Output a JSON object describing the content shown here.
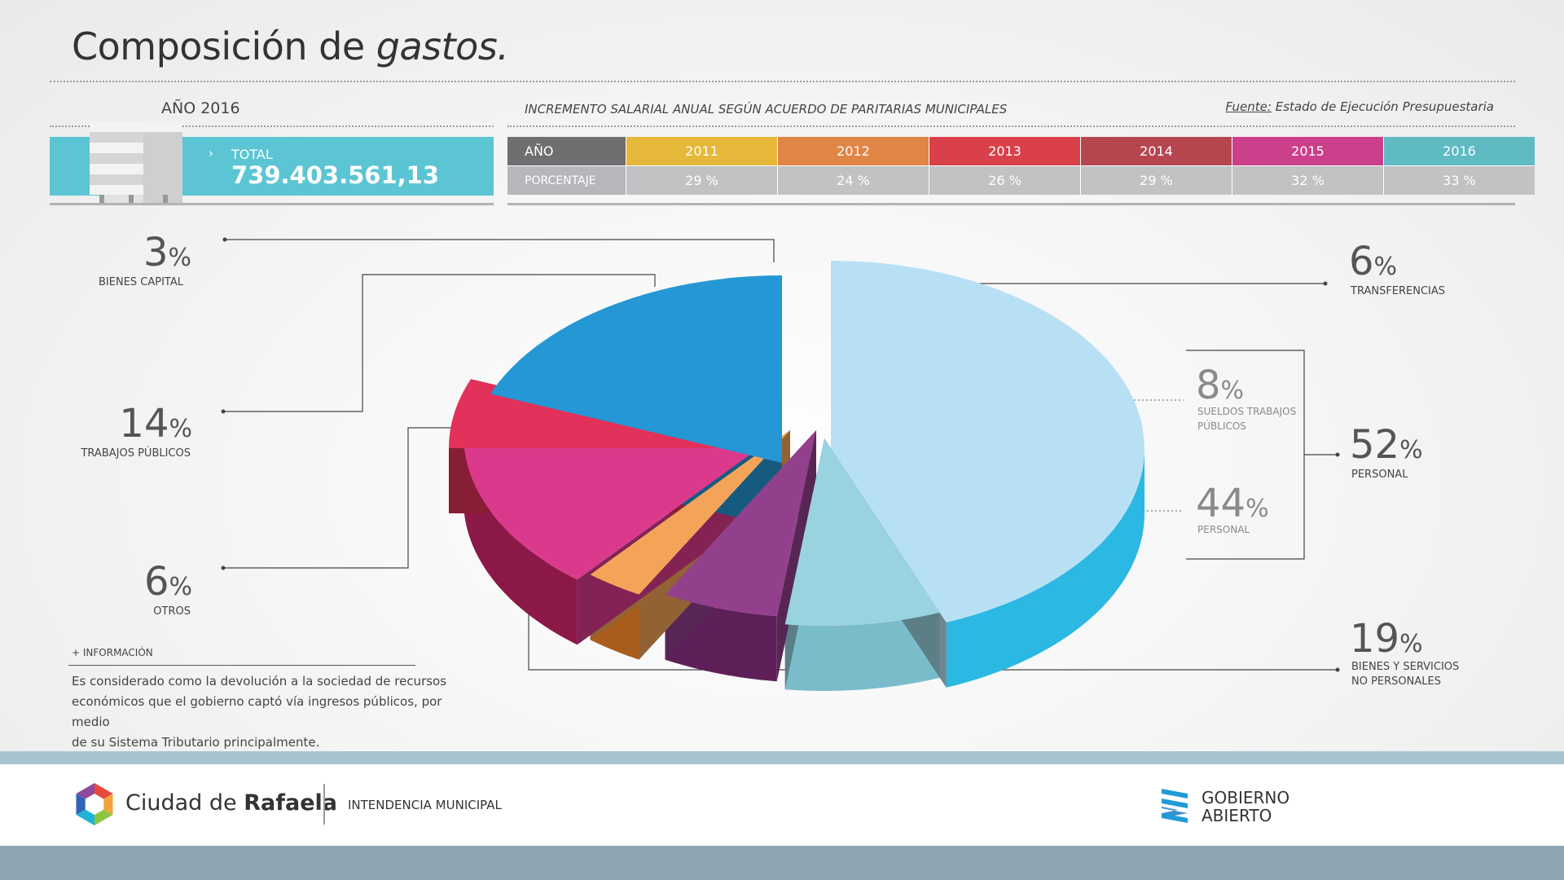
{
  "header": {
    "title_regular": "Composición de",
    "title_italic": "gastos."
  },
  "total": {
    "year_label": "AÑO 2016",
    "arrow": "›",
    "label": "TOTAL",
    "value": "739.403.561,13"
  },
  "salary_table": {
    "title": "INCREMENTO SALARIAL ANUAL SEGÚN ACUERDO DE PARITARIAS MUNICIPALES",
    "source_label": "Fuente:",
    "source_text": "Estado de Ejecución Presupuestaria",
    "row_header_year": "AÑO",
    "row_header_pct": "PORCENTAJE",
    "years": [
      "2011",
      "2012",
      "2013",
      "2014",
      "2015",
      "2016"
    ],
    "percentages": [
      "29 %",
      "24 %",
      "26 %",
      "29 %",
      "32 %",
      "33 %"
    ],
    "colors": [
      "#e5b83a",
      "#e08545",
      "#d9404a",
      "#b54650",
      "#cc3f8b",
      "#5fbac4"
    ]
  },
  "chart_data": {
    "type": "pie",
    "title": "Composición de gastos.",
    "slices": [
      {
        "label": "PERSONAL",
        "value": 44,
        "color": "#b8e0f4"
      },
      {
        "label": "SUELDOS TRABAJOS PÚBLICOS",
        "value": 8,
        "color": "#9ad3e0"
      },
      {
        "label": "TRANSFERENCIAS",
        "value": 6,
        "color": "#93408c"
      },
      {
        "label": "BIENES CAPITAL",
        "value": 3,
        "color": "#f4a459"
      },
      {
        "label": "TRABAJOS PÚBLICOS",
        "value": 14,
        "color": "#db3a8c"
      },
      {
        "label": "OTROS",
        "value": 6,
        "color": "#e2315a"
      },
      {
        "label": "BIENES Y SERVICIOS NO PERSONALES",
        "value": 19,
        "color": "#2497d4"
      }
    ],
    "group": {
      "label": "PERSONAL",
      "value": 52,
      "members": [
        "PERSONAL",
        "SUELDOS TRABAJOS PÚBLICOS"
      ]
    }
  },
  "labels": {
    "bienes_capital": {
      "num": "3",
      "sym": "%",
      "text": "BIENES CAPITAL"
    },
    "trabajos_publicos": {
      "num": "14",
      "sym": "%",
      "text": "TRABAJOS PÚBLICOS"
    },
    "otros": {
      "num": "6",
      "sym": "%",
      "text": "OTROS"
    },
    "transferencias": {
      "num": "6",
      "sym": "%",
      "text": "TRANSFERENCIAS"
    },
    "sueldos": {
      "num": "8",
      "sym": "%",
      "text1": "SUELDOS TRABAJOS",
      "text2": "PÚBLICOS"
    },
    "personal_inner": {
      "num": "44",
      "sym": "%",
      "text": "PERSONAL"
    },
    "personal_group": {
      "num": "52",
      "sym": "%",
      "text": "PERSONAL"
    },
    "bienes_servicios": {
      "num": "19",
      "sym": "%",
      "text1": "BIENES Y SERVICIOS",
      "text2": "NO PERSONALES"
    }
  },
  "info": {
    "heading": "+ INFORMACIÓN",
    "line1": "Es considerado como la devolución a la sociedad de recursos",
    "line2": "económicos que el gobierno captó vía ingresos públicos, por medio",
    "line3": "de su Sistema Tributario principalmente."
  },
  "footer": {
    "city_regular": "Ciudad de",
    "city_bold": "Rafaela",
    "intendencia": "INTENDENCIA MUNICIPAL",
    "gob_line1": "GOBIERNO",
    "gob_line2": "ABIERTO",
    "logo_colors": [
      "#e8493b",
      "#f2a33a",
      "#8cc63f",
      "#1fb3d9",
      "#2e63b8",
      "#8e4a9c"
    ]
  }
}
